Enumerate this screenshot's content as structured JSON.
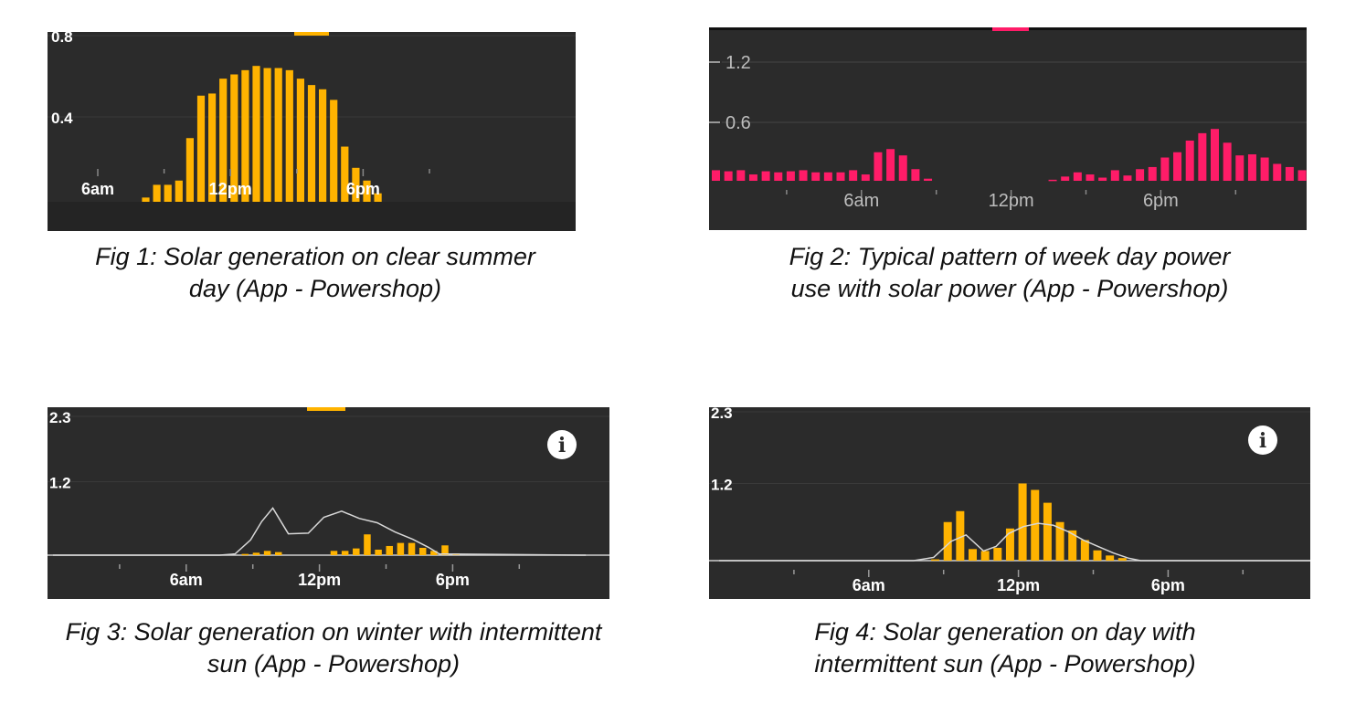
{
  "chart_data": [
    {
      "type": "bar",
      "series_color": "#ffb300",
      "y_ticks": [
        "0.8",
        "0.4"
      ],
      "y_tick_values": [
        0.8,
        0.4
      ],
      "ylim": [
        0,
        0.8
      ],
      "x_tick_labels": [
        "6am",
        "12pm",
        "6pm"
      ],
      "x_tick_hours": [
        6,
        12,
        18
      ],
      "x_range_hours": [
        0,
        24
      ],
      "bar_start_hour": 8,
      "bar_step_hours": 0.5,
      "values": [
        0.02,
        0.08,
        0.08,
        0.1,
        0.3,
        0.5,
        0.51,
        0.58,
        0.6,
        0.62,
        0.64,
        0.63,
        0.63,
        0.62,
        0.58,
        0.55,
        0.53,
        0.48,
        0.26,
        0.16,
        0.1,
        0.04
      ],
      "caption": "Fig 1: Solar generation on clear summer day (App - Powershop)"
    },
    {
      "type": "bar",
      "series_color": "#ff1c68",
      "y_ticks": [
        "1.2",
        "0.6"
      ],
      "y_tick_values": [
        1.2,
        0.6
      ],
      "ylim": [
        0,
        1.45
      ],
      "x_tick_labels": [
        "6am",
        "12pm",
        "6pm"
      ],
      "x_tick_hours": [
        6,
        12,
        18
      ],
      "x_range_hours": [
        0,
        24
      ],
      "bar_start_hour": 0,
      "bar_step_hours": 0.5,
      "values": [
        0.1,
        0.09,
        0.1,
        0.06,
        0.09,
        0.08,
        0.09,
        0.1,
        0.08,
        0.08,
        0.08,
        0.1,
        0.06,
        0.27,
        0.3,
        0.24,
        0.11,
        0.02,
        0,
        0,
        0,
        0,
        0,
        0,
        0,
        0,
        0,
        0.01,
        0.04,
        0.08,
        0.06,
        0.03,
        0.1,
        0.05,
        0.11,
        0.13,
        0.22,
        0.27,
        0.38,
        0.45,
        0.49,
        0.36,
        0.24,
        0.25,
        0.22,
        0.16,
        0.13,
        0.1,
        0.09,
        0.09
      ]
    },
    {
      "type": "bar",
      "series_color": "#ffb300",
      "y_ticks": [
        "2.3",
        "1.2"
      ],
      "y_tick_values": [
        2.3,
        1.2
      ],
      "ylim": [
        0,
        2.3
      ],
      "x_tick_labels": [
        "6am",
        "12pm",
        "6pm"
      ],
      "x_tick_hours": [
        6,
        12,
        18
      ],
      "x_range_hours": [
        0,
        24
      ],
      "bar_start_hour": 8.5,
      "bar_step_hours": 0.5,
      "values": [
        0.02,
        0.04,
        0.07,
        0.05,
        0,
        0,
        0,
        0,
        0.07,
        0.07,
        0.11,
        0.34,
        0.09,
        0.15,
        0.2,
        0.2,
        0.12,
        0.07,
        0.16,
        0.03
      ],
      "line_hours": [
        0,
        7.5,
        8.2,
        8.9,
        9.4,
        9.9,
        10.6,
        11.5,
        12.2,
        13.0,
        13.8,
        14.6,
        15.4,
        16.2,
        16.9,
        17.4,
        24
      ],
      "line_values": [
        0,
        0,
        0.02,
        0.25,
        0.55,
        0.77,
        0.35,
        0.36,
        0.62,
        0.72,
        0.6,
        0.53,
        0.38,
        0.26,
        0.13,
        0.02,
        0
      ],
      "caption": "Fig 3: Solar  generation on winter with intermittent sun (App - Powershop)"
    },
    {
      "type": "bar",
      "series_color": "#ffb300",
      "y_ticks": [
        "2.3",
        "1.2"
      ],
      "y_tick_values": [
        2.3,
        1.2
      ],
      "ylim": [
        0,
        2.3
      ],
      "x_tick_labels": [
        "6am",
        "12pm",
        "6pm"
      ],
      "x_tick_hours": [
        6,
        12,
        18
      ],
      "x_range_hours": [
        0,
        24
      ],
      "bar_start_hour": 8.5,
      "bar_step_hours": 0.5,
      "values": [
        0.02,
        0.6,
        0.77,
        0.18,
        0.15,
        0.2,
        0.5,
        1.2,
        1.1,
        0.9,
        0.6,
        0.47,
        0.32,
        0.16,
        0.08,
        0.04
      ],
      "line_hours": [
        0,
        7.8,
        8.6,
        9.3,
        9.9,
        10.6,
        11.1,
        11.6,
        12.2,
        12.8,
        13.4,
        14.0,
        14.6,
        15.2,
        15.8,
        16.4,
        16.9,
        24
      ],
      "line_values": [
        0,
        0,
        0.05,
        0.3,
        0.4,
        0.15,
        0.22,
        0.42,
        0.53,
        0.58,
        0.55,
        0.45,
        0.32,
        0.22,
        0.12,
        0.04,
        0,
        0
      ],
      "caption": "Fig 4: Solar  generation on day with intermittent sun (App - Powershop)"
    }
  ],
  "captions": {
    "fig1": "Fig 1: Solar generation on clear summer day (App - Powershop)",
    "fig2": "Fig 2: Typical pattern of week day power use  with solar power (App - Powershop)",
    "fig3": "Fig 3: Solar  generation on winter with intermittent sun (App - Powershop)",
    "fig4": "Fig 4: Solar  generation on day with intermittent sun (App - Powershop)"
  },
  "icons": {
    "info": "i"
  },
  "colors": {
    "panel_bg": "#2b2b2b",
    "solar": "#ffb300",
    "usage": "#ff1c68",
    "forecast_line": "#cfcfcf"
  }
}
